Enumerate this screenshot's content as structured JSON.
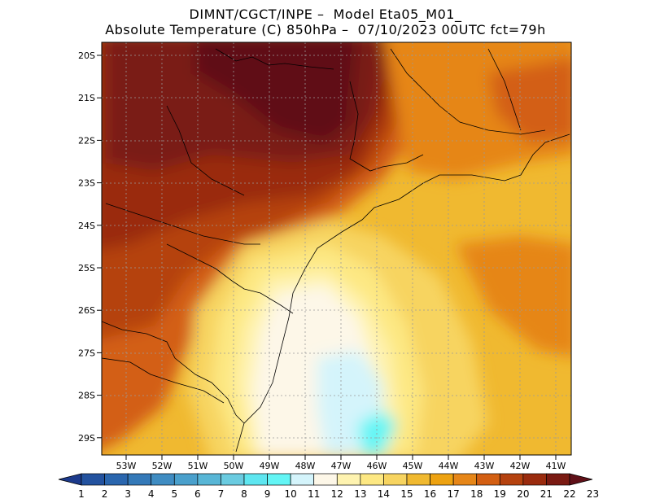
{
  "title": {
    "line1": "DIMNT/CGCT/INPE –  Model Eta05_M01_",
    "line2": "Absolute Temperature (C) 850hPa –  07/10/2023 00UTC fct=79h"
  },
  "axes": {
    "lat_labels": [
      "20S",
      "21S",
      "22S",
      "23S",
      "24S",
      "25S",
      "26S",
      "27S",
      "28S",
      "29S"
    ],
    "lon_labels": [
      "53W",
      "52W",
      "51W",
      "50W",
      "49W",
      "48W",
      "47W",
      "46W",
      "45W",
      "44W",
      "43W",
      "42W",
      "41W"
    ]
  },
  "colorbar": {
    "labels": [
      "1",
      "2",
      "3",
      "4",
      "5",
      "6",
      "7",
      "8",
      "9",
      "10",
      "11",
      "12",
      "13",
      "14",
      "15",
      "16",
      "17",
      "18",
      "19",
      "20",
      "21",
      "22",
      "23"
    ],
    "colors": [
      "#1c3a8c",
      "#23529f",
      "#2a66ae",
      "#3479b8",
      "#3f8cc2",
      "#4aa0cc",
      "#58b6d6",
      "#6acbe0",
      "#5ee6f0",
      "#63f5f5",
      "#d4f4fb",
      "#fdf7e8",
      "#fef3b0",
      "#fde883",
      "#f7d460",
      "#f0b930",
      "#eda211",
      "#e68618",
      "#d35f12",
      "#b5420f",
      "#9a2b0e",
      "#7a1a12",
      "#601018"
    ]
  }
}
